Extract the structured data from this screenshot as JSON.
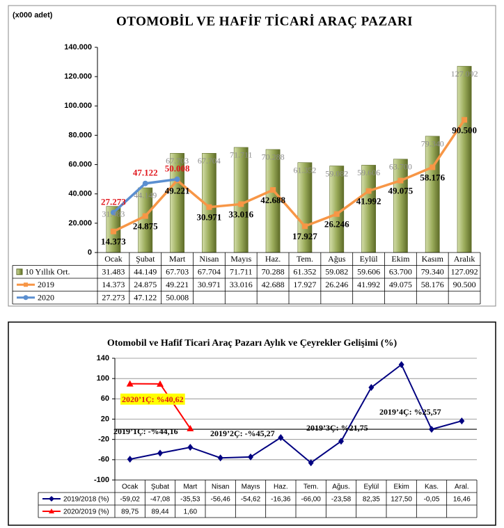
{
  "chart_data": [
    {
      "type": "bar",
      "title": "OTOMOBİL VE HAFİF TİCARİ ARAÇ PAZARI",
      "unit": "(x000 adet)",
      "categories": [
        "Ocak",
        "Şubat",
        "Mart",
        "Nisan",
        "Mayıs",
        "Haz.",
        "Tem.",
        "Ağus",
        "Eylül",
        "Ekim",
        "Kasım",
        "Aralık"
      ],
      "ylim": [
        0,
        140000
      ],
      "yticks": [
        0,
        {
          "value": 20000,
          "label": "20.000"
        },
        {
          "value": 40000,
          "label": "40.000"
        },
        {
          "value": 60000,
          "label": "60.000"
        },
        {
          "value": 80000,
          "label": "80.000"
        },
        {
          "value": 100000,
          "label": "100.000"
        },
        {
          "value": 120000,
          "label": "120.000"
        },
        {
          "value": 140000,
          "label": "140.000"
        }
      ],
      "grid": false,
      "data_labels": true,
      "series": [
        {
          "name": "10 Yıllık Ort.",
          "type": "bar",
          "color": "#8a9a4c",
          "values": [
            31483,
            44149,
            67703,
            67704,
            71711,
            70288,
            61352,
            59082,
            59606,
            63700,
            79340,
            127092
          ],
          "value_labels": [
            "31.483",
            "44.149",
            "67.703",
            "67.704",
            "71.711",
            "70.288",
            "61.352",
            "59.082",
            "59.606",
            "63.700",
            "79.340",
            "127.092"
          ]
        },
        {
          "name": "2019",
          "type": "line",
          "marker": "square",
          "color": "#f79646",
          "values": [
            14373,
            24875,
            49221,
            30971,
            33016,
            42688,
            17927,
            26246,
            41992,
            49075,
            58176,
            90500
          ],
          "value_labels": [
            "14.373",
            "24.875",
            "49.221",
            "30.971",
            "33.016",
            "42.688",
            "17.927",
            "26.246",
            "41.992",
            "49.075",
            "58.176",
            "90.500"
          ]
        },
        {
          "name": "2020",
          "type": "line",
          "marker": "circle",
          "color": "#5b8fd0",
          "values": [
            27273,
            47122,
            50008,
            null,
            null,
            null,
            null,
            null,
            null,
            null,
            null,
            null
          ],
          "value_labels": [
            "27.273",
            "47.122",
            "50.008",
            null,
            null,
            null,
            null,
            null,
            null,
            null,
            null,
            null
          ]
        }
      ]
    },
    {
      "type": "line",
      "title": "Otomobil ve Hafif Ticari Araç Pazarı Aylık ve Çeyrekler Gelişimi (%)",
      "categories": [
        "Ocak",
        "Şubat",
        "Mart",
        "Nisan",
        "Mayıs",
        "Haz.",
        "Tem.",
        "Ağus.",
        "Eylül",
        "Ekim",
        "Kas.",
        "Aral."
      ],
      "ylim": [
        -100,
        140
      ],
      "yticks": [
        -100,
        -60,
        -20,
        20,
        60,
        100,
        140
      ],
      "grid": true,
      "data_labels": false,
      "series": [
        {
          "name": "2019/2018 (%)",
          "type": "line",
          "marker": "diamond",
          "color": "#000080",
          "values": [
            -59.02,
            -47.08,
            -35.53,
            -56.46,
            -54.62,
            -16.36,
            -66.0,
            -23.58,
            82.35,
            127.5,
            -0.05,
            16.46
          ],
          "value_labels": [
            "-59,02",
            "-47,08",
            "-35,53",
            "-56,46",
            "-54,62",
            "-16,36",
            "-66,00",
            "-23,58",
            "82,35",
            "127,50",
            "-0,05",
            "16,46"
          ]
        },
        {
          "name": "2020/2019 (%)",
          "type": "line",
          "marker": "triangle",
          "color": "#ff0000",
          "values": [
            89.75,
            89.44,
            1.6,
            null,
            null,
            null,
            null,
            null,
            null,
            null,
            null,
            null
          ],
          "value_labels": [
            "89,75",
            "89,44",
            "1,60",
            null,
            null,
            null,
            null,
            null,
            null,
            null,
            null,
            null
          ]
        }
      ],
      "annotations": [
        "2020’1Ç: %40,62",
        "2019’1Ç: -%44,16",
        "2019’2Ç: -%45,27",
        "2019’3Ç: %21,75",
        "2019’4Ç: %25,57"
      ]
    }
  ]
}
